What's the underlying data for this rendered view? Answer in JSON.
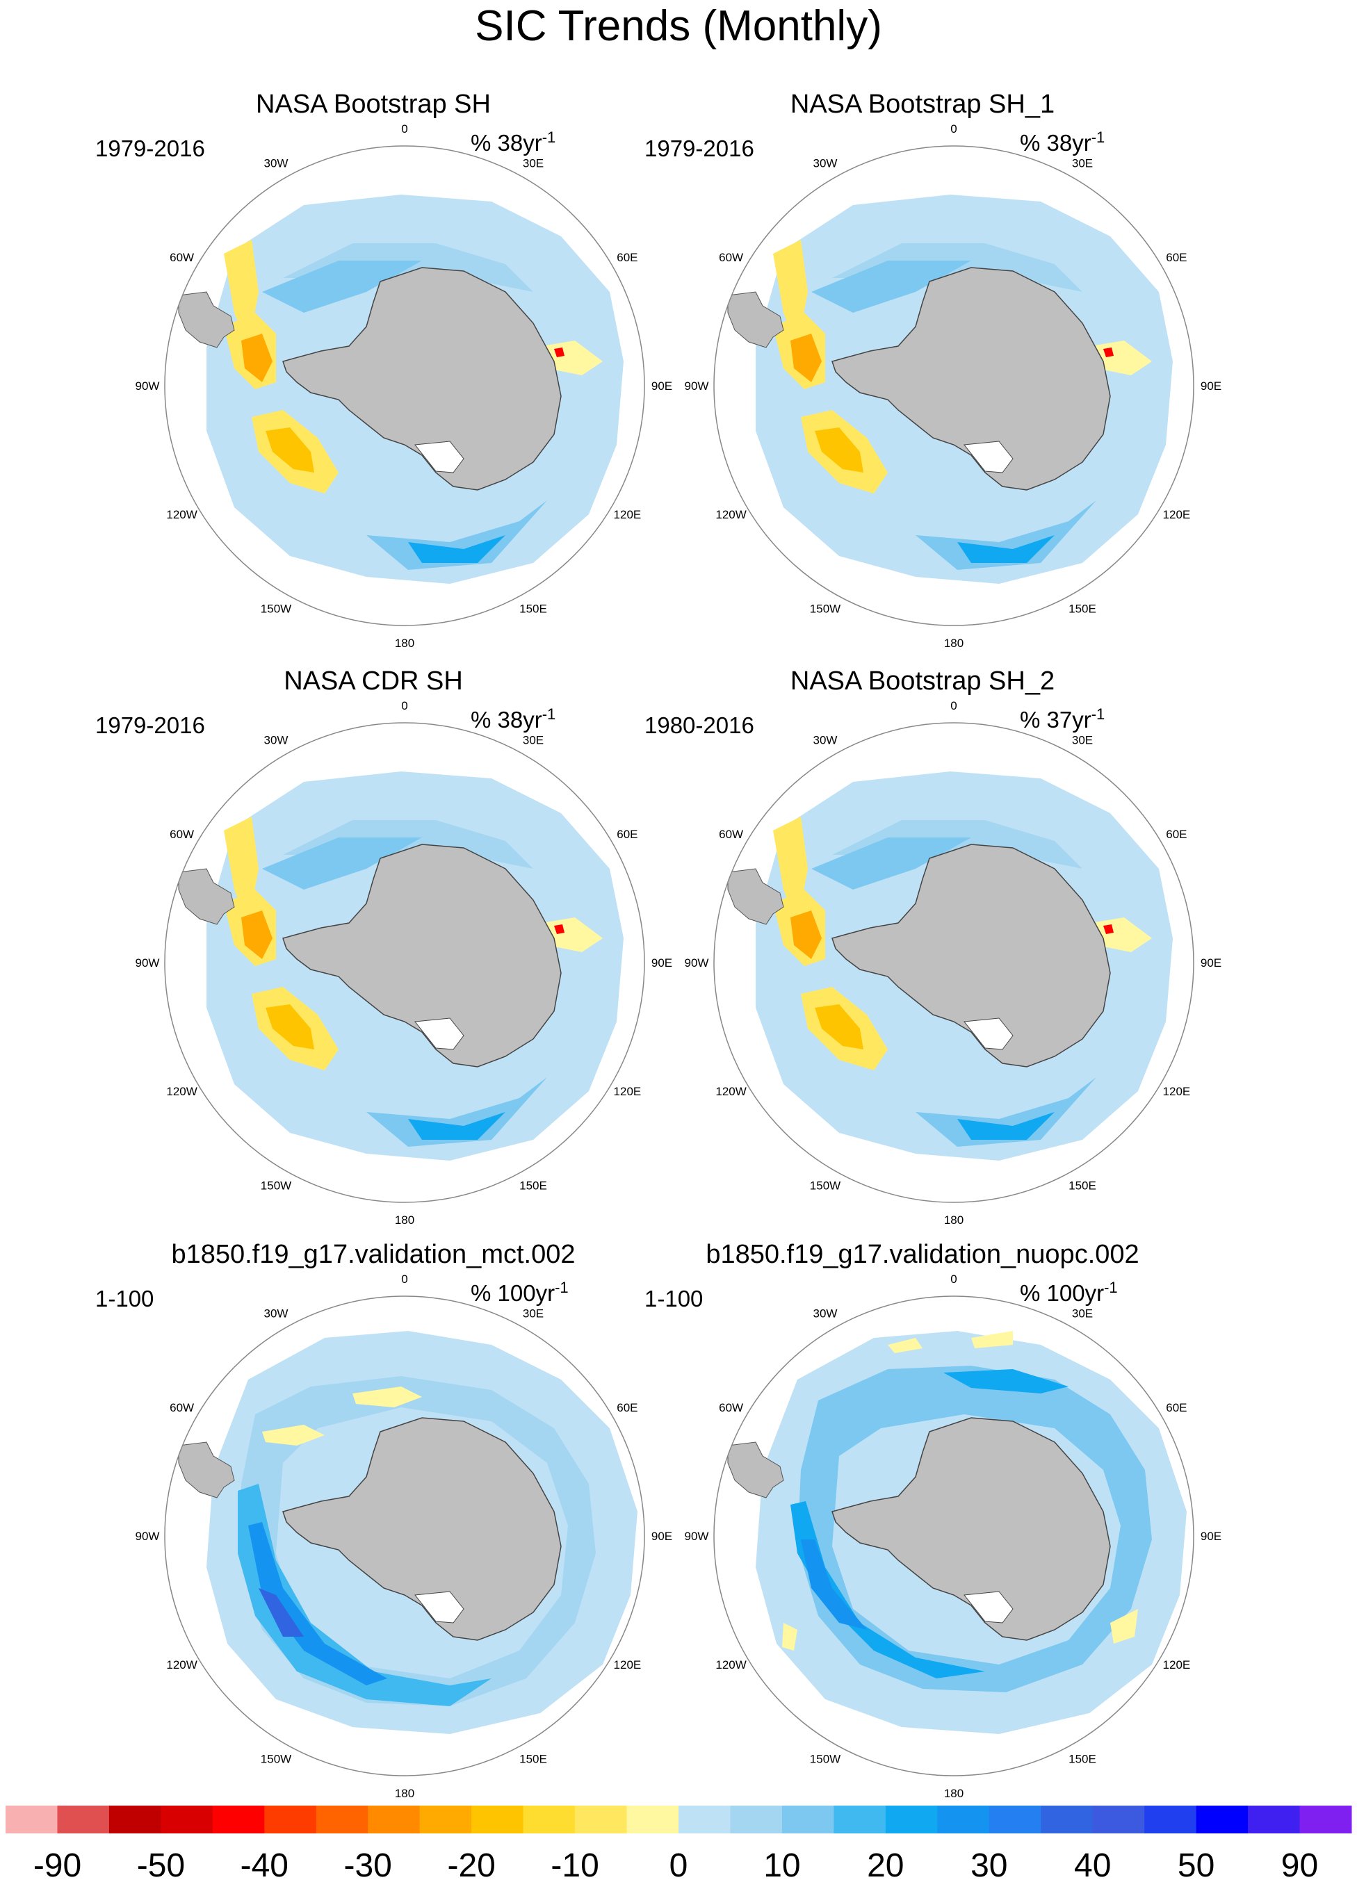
{
  "title": "SIC Trends (Monthly)",
  "longitude_labels": [
    "0",
    "30E",
    "60E",
    "90E",
    "120E",
    "150E",
    "180",
    "150W",
    "120W",
    "90W",
    "60W",
    "30W"
  ],
  "panels": [
    {
      "title": "NASA Bootstrap SH",
      "period": "1979-2016",
      "units_prefix": "% 38yr",
      "units_exp": "-1"
    },
    {
      "title": "NASA Bootstrap SH_1",
      "period": "1979-2016",
      "units_prefix": "% 38yr",
      "units_exp": "-1"
    },
    {
      "title": "NASA CDR SH",
      "period": "1979-2016",
      "units_prefix": "% 38yr",
      "units_exp": "-1"
    },
    {
      "title": "NASA Bootstrap SH_2",
      "period": "1980-2016",
      "units_prefix": "% 37yr",
      "units_exp": "-1"
    },
    {
      "title": "b1850.f19_g17.validation_mct.002",
      "period": "1-100",
      "units_prefix": "% 100yr",
      "units_exp": "-1"
    },
    {
      "title": "b1850.f19_g17.validation_nuopc.002",
      "period": "1-100",
      "units_prefix": "% 100yr",
      "units_exp": "-1"
    }
  ],
  "colorbar": {
    "colors": [
      "#f8b0b0",
      "#e05050",
      "#c00000",
      "#d80000",
      "#ff0000",
      "#ff3c00",
      "#ff6400",
      "#ff8a00",
      "#ffaa00",
      "#ffc400",
      "#ffdc30",
      "#ffe860",
      "#fff8a0",
      "#bfe1f6",
      "#a4d6f2",
      "#7cc8f0",
      "#40b8f0",
      "#10a8f0",
      "#1494f0",
      "#2480f0",
      "#3064e0",
      "#3c5ae0",
      "#2040f0",
      "#0000ff",
      "#4020f0",
      "#8020f0"
    ],
    "labels": [
      "-90",
      "-50",
      "-40",
      "-30",
      "-20",
      "-10",
      "0",
      "10",
      "20",
      "30",
      "40",
      "50",
      "90"
    ]
  },
  "colors": {
    "land": "#bdbdbd",
    "antarctica": "#bfbfbf",
    "circle": "#888888"
  }
}
